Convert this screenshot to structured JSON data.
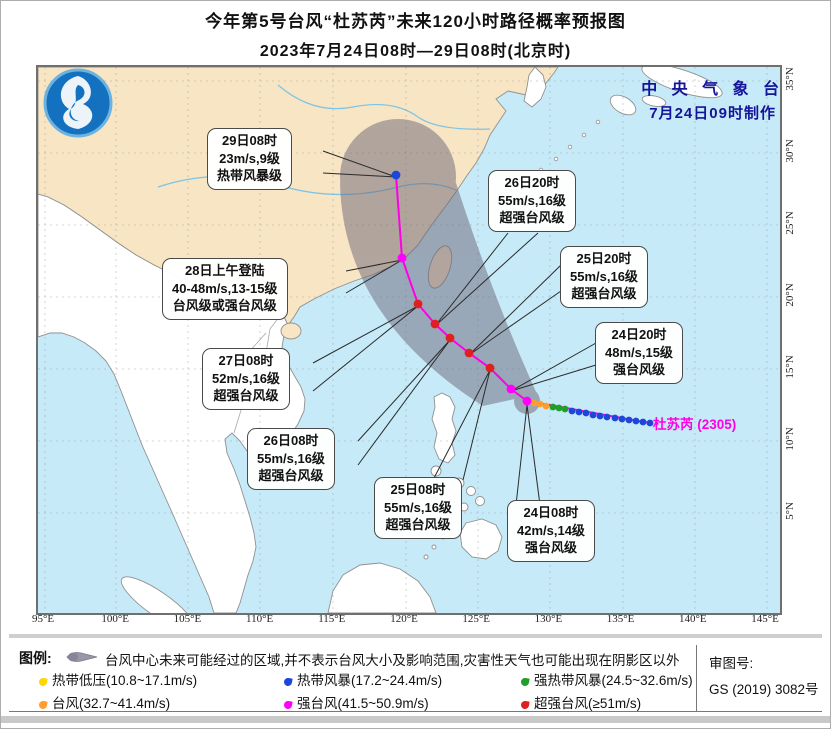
{
  "title": {
    "line1": "今年第5号台风“杜苏芮”未来120小时路径概率预报图",
    "line2": "2023年7月24日08时—29日08时(北京时)"
  },
  "agency": {
    "name": "中 央 气 象 台",
    "issued": "7月24日09时制作"
  },
  "storm_label": "杜苏芮 (2305)",
  "map": {
    "lon_labels": [
      "95°E",
      "100°E",
      "105°E",
      "110°E",
      "115°E",
      "120°E",
      "125°E",
      "130°E",
      "135°E",
      "140°E",
      "145°E"
    ],
    "lat_labels": [
      "35°N",
      "30°N",
      "25°N",
      "20°N",
      "15°N",
      "10°N",
      "5°N"
    ]
  },
  "callouts": [
    {
      "id": "fc-29-08",
      "lines": [
        "29日08时",
        "23m/s,9级",
        "热带风暴级"
      ]
    },
    {
      "id": "fc-28-landfall",
      "lines": [
        "28日上午登陆",
        "40-48m/s,13-15级",
        "台风级或强台风级"
      ]
    },
    {
      "id": "fc-27-08",
      "lines": [
        "27日08时",
        "52m/s,16级",
        "超强台风级"
      ]
    },
    {
      "id": "fc-26-08",
      "lines": [
        "26日08时",
        "55m/s,16级",
        "超强台风级"
      ]
    },
    {
      "id": "fc-25-08",
      "lines": [
        "25日08时",
        "55m/s,16级",
        "超强台风级"
      ]
    },
    {
      "id": "fc-24-08",
      "lines": [
        "24日08时",
        "42m/s,14级",
        "强台风级"
      ]
    },
    {
      "id": "fc-24-20",
      "lines": [
        "24日20时",
        "48m/s,15级",
        "强台风级"
      ]
    },
    {
      "id": "fc-25-20",
      "lines": [
        "25日20时",
        "55m/s,16级",
        "超强台风级"
      ]
    },
    {
      "id": "fc-26-20",
      "lines": [
        "26日20时",
        "55m/s,16级",
        "超强台风级"
      ]
    }
  ],
  "legend": {
    "title": "图例:",
    "cone_note": "台风中心未来可能经过的区域,并不表示台风大小及影响范围,灾害性天气也可能出现在阴影区以外",
    "items": [
      {
        "label": "热带低压(10.8~17.1m/s)",
        "color": "#ffd600"
      },
      {
        "label": "热带风暴(17.2~24.4m/s)",
        "color": "#1e46d8"
      },
      {
        "label": "强热带风暴(24.5~32.6m/s)",
        "color": "#1f9e28"
      },
      {
        "label": "台风(32.7~41.4m/s)",
        "color": "#ff9d2e"
      },
      {
        "label": "强台风(41.5~50.9m/s)",
        "color": "#ff00ff"
      },
      {
        "label": "超强台风(≥51m/s)",
        "color": "#e02020"
      }
    ]
  },
  "review": {
    "label": "审图号:",
    "number": "GS (2019) 3082号"
  },
  "colors": {
    "ocean": "#c7eaf8",
    "china_land": "#f7e5c4",
    "other_land": "#ffffff",
    "cone": "#6b6577",
    "track_line": "#ff00e6",
    "agency_text": "#14149a"
  }
}
